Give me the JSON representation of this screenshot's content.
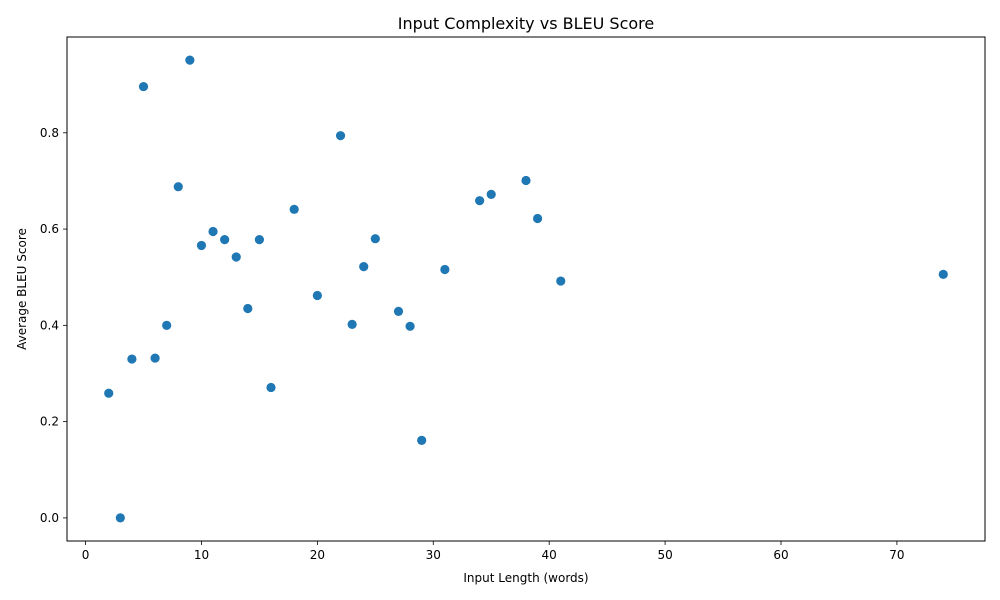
{
  "chart_data": {
    "type": "scatter",
    "title": "Input Complexity vs BLEU Score",
    "xlabel": "Input Length (words)",
    "ylabel": "Average BLEU Score",
    "xlim": [
      -1.6,
      77.6
    ],
    "ylim": [
      -0.048,
      0.999
    ],
    "xticks": [
      0,
      10,
      20,
      30,
      40,
      50,
      60,
      70
    ],
    "yticks": [
      0.0,
      0.2,
      0.4,
      0.6,
      0.8
    ],
    "ytick_labels": [
      "0.0",
      "0.2",
      "0.4",
      "0.6",
      "0.8"
    ],
    "grid": false,
    "marker_color": "#1f77b4",
    "points": [
      {
        "x": 2,
        "y": 0.259
      },
      {
        "x": 3,
        "y": 0.0
      },
      {
        "x": 4,
        "y": 0.33
      },
      {
        "x": 5,
        "y": 0.896
      },
      {
        "x": 6,
        "y": 0.332
      },
      {
        "x": 7,
        "y": 0.4
      },
      {
        "x": 8,
        "y": 0.688
      },
      {
        "x": 9,
        "y": 0.951
      },
      {
        "x": 10,
        "y": 0.566
      },
      {
        "x": 11,
        "y": 0.595
      },
      {
        "x": 12,
        "y": 0.578
      },
      {
        "x": 13,
        "y": 0.542
      },
      {
        "x": 14,
        "y": 0.435
      },
      {
        "x": 15,
        "y": 0.578
      },
      {
        "x": 16,
        "y": 0.271
      },
      {
        "x": 18,
        "y": 0.641
      },
      {
        "x": 20,
        "y": 0.462
      },
      {
        "x": 22,
        "y": 0.794
      },
      {
        "x": 23,
        "y": 0.402
      },
      {
        "x": 24,
        "y": 0.522
      },
      {
        "x": 25,
        "y": 0.58
      },
      {
        "x": 27,
        "y": 0.429
      },
      {
        "x": 28,
        "y": 0.398
      },
      {
        "x": 29,
        "y": 0.161
      },
      {
        "x": 31,
        "y": 0.516
      },
      {
        "x": 34,
        "y": 0.659
      },
      {
        "x": 35,
        "y": 0.672
      },
      {
        "x": 38,
        "y": 0.701
      },
      {
        "x": 39,
        "y": 0.622
      },
      {
        "x": 41,
        "y": 0.492
      },
      {
        "x": 74,
        "y": 0.506
      }
    ]
  }
}
